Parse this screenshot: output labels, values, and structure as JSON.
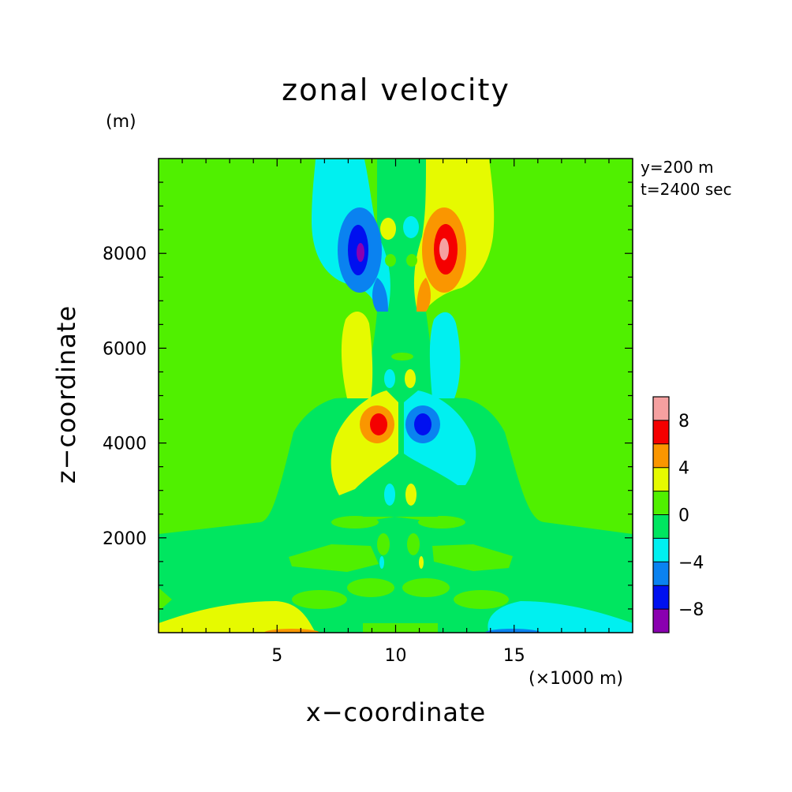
{
  "chart_data": {
    "type": "heatmap",
    "title": "zonal velocity",
    "xlabel": "x−coordinate",
    "ylabel": "z−coordinate",
    "x_unit": "(×1000 m)",
    "y_unit": "(m)",
    "annotations": [
      "y=200 m",
      "t=2400 sec"
    ],
    "xlim": [
      0,
      20
    ],
    "ylim": [
      0,
      10000
    ],
    "x_ticks": [
      5,
      10,
      15
    ],
    "y_ticks": [
      2000,
      4000,
      6000,
      8000
    ],
    "colorbar": {
      "levels": [
        -10,
        -8,
        -6,
        -4,
        -2,
        0,
        2,
        4,
        6,
        8,
        10
      ],
      "tick_labels": [
        "8",
        "4",
        "0",
        "−4",
        "−8"
      ],
      "tick_values": [
        8,
        4,
        0,
        -4,
        -8
      ],
      "colors": [
        "#8a00b0",
        "#0010f0",
        "#0a82f0",
        "#00f0f0",
        "#00e660",
        "#50f000",
        "#e6fa00",
        "#fa9600",
        "#f50000",
        "#f5a0a0"
      ]
    },
    "features": [
      {
        "x": 8.5,
        "z": 8000,
        "value": -9
      },
      {
        "x": 11.9,
        "z": 8050,
        "value": 9
      },
      {
        "x": 9.3,
        "z": 4450,
        "value": 7
      },
      {
        "x": 11.0,
        "z": 4400,
        "value": -7
      },
      {
        "x": 9.6,
        "z": 2950,
        "value": -3
      },
      {
        "x": 10.5,
        "z": 2950,
        "value": 3
      },
      {
        "x": 5.0,
        "z": 150,
        "value": 3
      },
      {
        "x": 15.0,
        "z": 150,
        "value": -3
      }
    ]
  }
}
